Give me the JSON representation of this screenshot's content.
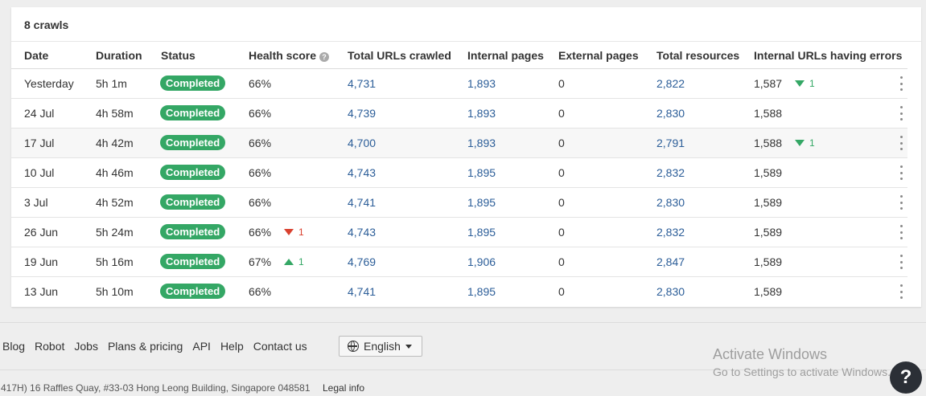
{
  "card": {
    "title": "8 crawls"
  },
  "columns": [
    "Date",
    "Duration",
    "Status",
    "Health score",
    "Total URLs crawled",
    "Internal pages",
    "External pages",
    "Total resources",
    "Internal URLs having errors"
  ],
  "health_help_icon": "question-circle-icon",
  "rows": [
    {
      "date": "Yesterday",
      "duration": "5h 1m",
      "status": "Completed",
      "health": "66%",
      "health_delta": "",
      "health_dir": "",
      "total_urls": "4,731",
      "internal": "1,893",
      "external": "0",
      "resources": "2,822",
      "errors": "1,587",
      "errors_delta": "1",
      "errors_dir": "down"
    },
    {
      "date": "24 Jul",
      "duration": "4h 58m",
      "status": "Completed",
      "health": "66%",
      "health_delta": "",
      "health_dir": "",
      "total_urls": "4,739",
      "internal": "1,893",
      "external": "0",
      "resources": "2,830",
      "errors": "1,588",
      "errors_delta": "",
      "errors_dir": ""
    },
    {
      "date": "17 Jul",
      "duration": "4h 42m",
      "status": "Completed",
      "health": "66%",
      "health_delta": "",
      "health_dir": "",
      "total_urls": "4,700",
      "internal": "1,893",
      "external": "0",
      "resources": "2,791",
      "errors": "1,588",
      "errors_delta": "1",
      "errors_dir": "down"
    },
    {
      "date": "10 Jul",
      "duration": "4h 46m",
      "status": "Completed",
      "health": "66%",
      "health_delta": "",
      "health_dir": "",
      "total_urls": "4,743",
      "internal": "1,895",
      "external": "0",
      "resources": "2,832",
      "errors": "1,589",
      "errors_delta": "",
      "errors_dir": ""
    },
    {
      "date": "3 Jul",
      "duration": "4h 52m",
      "status": "Completed",
      "health": "66%",
      "health_delta": "",
      "health_dir": "",
      "total_urls": "4,741",
      "internal": "1,895",
      "external": "0",
      "resources": "2,830",
      "errors": "1,589",
      "errors_delta": "",
      "errors_dir": ""
    },
    {
      "date": "26 Jun",
      "duration": "5h 24m",
      "status": "Completed",
      "health": "66%",
      "health_delta": "1",
      "health_dir": "down",
      "total_urls": "4,743",
      "internal": "1,895",
      "external": "0",
      "resources": "2,832",
      "errors": "1,589",
      "errors_delta": "",
      "errors_dir": ""
    },
    {
      "date": "19 Jun",
      "duration": "5h 16m",
      "status": "Completed",
      "health": "67%",
      "health_delta": "1",
      "health_dir": "up",
      "total_urls": "4,769",
      "internal": "1,906",
      "external": "0",
      "resources": "2,847",
      "errors": "1,589",
      "errors_delta": "",
      "errors_dir": ""
    },
    {
      "date": "13 Jun",
      "duration": "5h 10m",
      "status": "Completed",
      "health": "66%",
      "health_delta": "",
      "health_dir": "",
      "total_urls": "4,741",
      "internal": "1,895",
      "external": "0",
      "resources": "2,830",
      "errors": "1,589",
      "errors_delta": "",
      "errors_dir": ""
    }
  ],
  "highlight_row": 2,
  "colors": {
    "badge": "#34a765",
    "link": "#2b5d98",
    "negative": "#d9412f",
    "positive": "#34a765"
  },
  "footer": {
    "links": [
      "Blog",
      "Robot",
      "Jobs",
      "Plans & pricing",
      "API",
      "Help",
      "Contact us"
    ],
    "language": "English",
    "address": "417H) 16 Raffles Quay, #33-03 Hong Leong Building, Singapore 048581",
    "legal": "Legal info"
  },
  "watermark": {
    "line1": "Activate Windows",
    "line2": "Go to Settings to activate Windows."
  },
  "help_button": "?"
}
